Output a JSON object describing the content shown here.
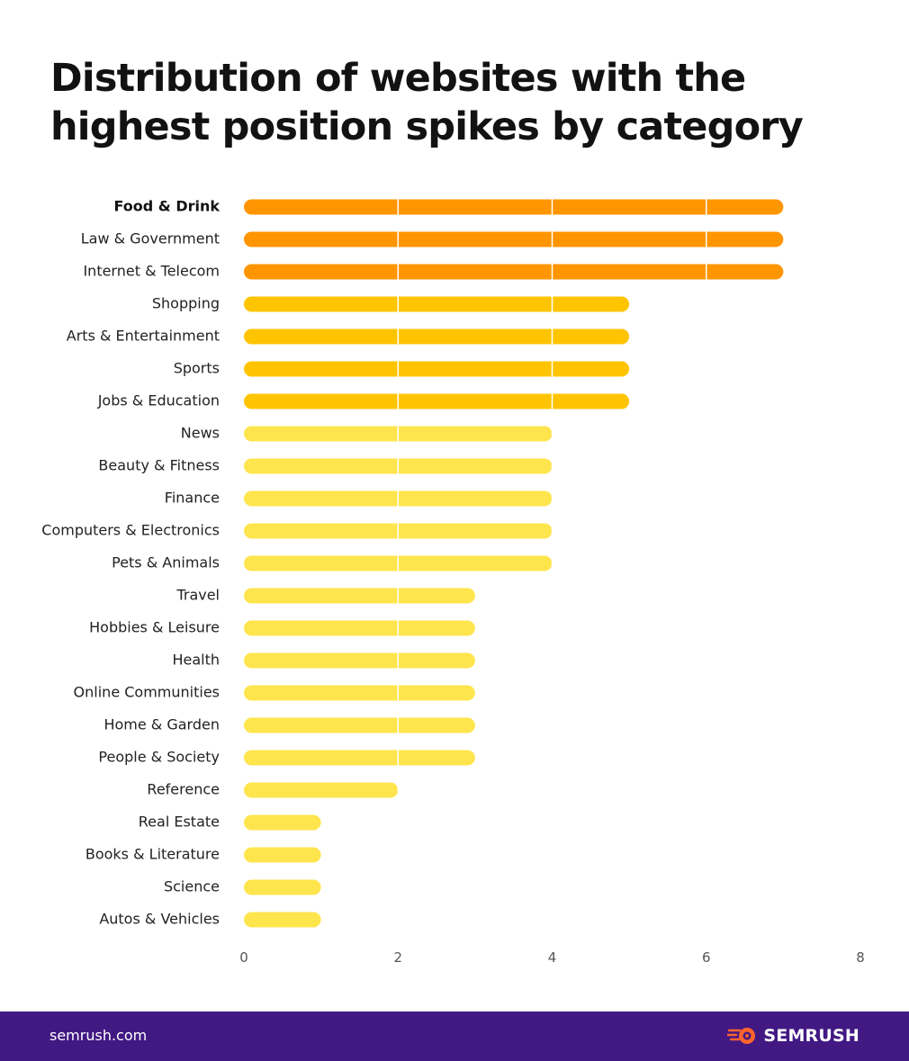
{
  "chart_data": {
    "type": "bar",
    "orientation": "horizontal",
    "title": "Distribution of websites with the highest position spikes by category",
    "categories": [
      "Food & Drink",
      "Law & Government",
      "Internet & Telecom",
      "Shopping",
      "Arts & Entertainment",
      "Sports",
      "Jobs & Education",
      "News",
      "Beauty & Fitness",
      "Finance",
      "Computers & Electronics",
      "Pets & Animals",
      "Travel",
      "Hobbies & Leisure",
      "Health",
      "Online Communities",
      "Home & Garden",
      "People & Society",
      "Reference",
      "Real Estate",
      "Books & Literature",
      "Science",
      "Autos & Vehicles"
    ],
    "values": [
      7,
      7,
      7,
      5,
      5,
      5,
      5,
      4,
      4,
      4,
      4,
      4,
      3,
      3,
      3,
      3,
      3,
      3,
      2,
      1,
      1,
      1,
      1
    ],
    "highlighted_category": "Food & Drink",
    "xlim": [
      0,
      8
    ],
    "xticks": [
      0,
      2,
      4,
      6,
      8
    ],
    "xlabel": "",
    "ylabel": "",
    "grid": true,
    "color_scale": [
      {
        "min_value": 7,
        "color": "#FF9500"
      },
      {
        "min_value": 5,
        "color": "#FFC400"
      },
      {
        "min_value": 0,
        "color": "#FFE54D"
      }
    ]
  },
  "footer": {
    "site": "semrush.com",
    "brand": "SEMRUSH",
    "brand_icon": "semrush-fireball-icon",
    "background_color": "#421983",
    "icon_color": "#FF642D"
  }
}
